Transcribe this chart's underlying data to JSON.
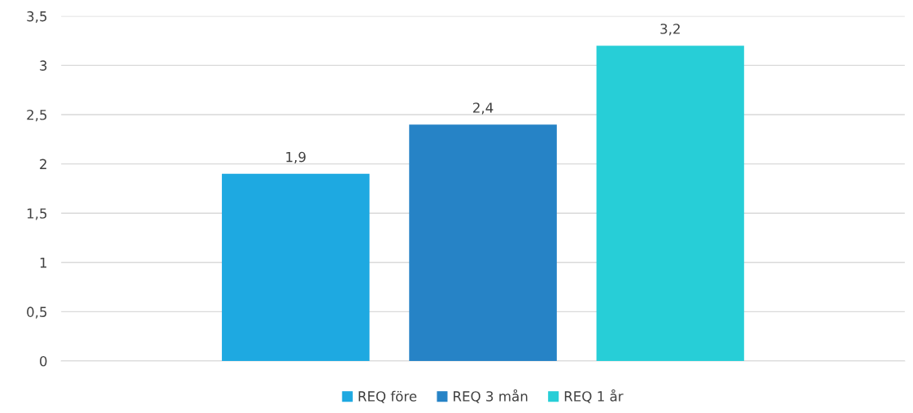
{
  "chart_data": {
    "type": "bar",
    "categories": [
      null
    ],
    "series": [
      {
        "name": "REQ före",
        "color": "#1ea9e1",
        "values": [
          1.9
        ],
        "value_labels": [
          "1,9"
        ]
      },
      {
        "name": "REQ 3 mån",
        "color": "#2683c6",
        "values": [
          2.4
        ],
        "value_labels": [
          "2,4"
        ]
      },
      {
        "name": "REQ 1 år",
        "color": "#27ced7",
        "values": [
          3.2
        ],
        "value_labels": [
          "3,2"
        ]
      }
    ],
    "ylim": [
      0,
      3.5
    ],
    "yticks": [
      0,
      {
        "value": 0.5,
        "label": "0,5"
      },
      1,
      {
        "value": 1.5,
        "label": "1,5"
      },
      2,
      {
        "value": 2.5,
        "label": "2,5"
      },
      3,
      {
        "value": 3.5,
        "label": "3,5"
      }
    ],
    "grid": "y",
    "legend": "bottom"
  }
}
